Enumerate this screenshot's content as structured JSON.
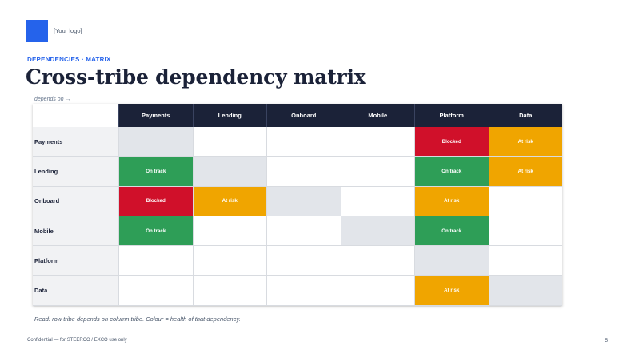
{
  "logo": {
    "text": "[Your logo]"
  },
  "kicker": "DEPENDENCIES · MATRIX",
  "title": "Cross-tribe dependency matrix",
  "depends_on": "depends on →",
  "colors": {
    "navy": "#1b2238",
    "blocked": "#d0102a",
    "at_risk": "#f0a500",
    "on_track": "#2e9e57",
    "self": "#e2e5ea",
    "accent": "#2563eb"
  },
  "matrix": {
    "columns": [
      "Payments",
      "Lending",
      "Onboard",
      "Mobile",
      "Platform",
      "Data"
    ],
    "rows": [
      {
        "label": "Payments",
        "cells": [
          "self",
          "",
          "",
          "",
          "Blocked",
          "At risk"
        ]
      },
      {
        "label": "Lending",
        "cells": [
          "On track",
          "self",
          "",
          "",
          "On track",
          "At risk"
        ]
      },
      {
        "label": "Onboard",
        "cells": [
          "Blocked",
          "At risk",
          "self",
          "",
          "At risk",
          ""
        ]
      },
      {
        "label": "Mobile",
        "cells": [
          "On track",
          "",
          "",
          "self",
          "On track",
          ""
        ]
      },
      {
        "label": "Platform",
        "cells": [
          "",
          "",
          "",
          "",
          "self",
          ""
        ]
      },
      {
        "label": "Data",
        "cells": [
          "",
          "",
          "",
          "",
          "At risk",
          "self"
        ]
      }
    ]
  },
  "footnote": "Read: row tribe depends on column tribe. Colour = health of that dependency.",
  "footer": "Confidential — for STEERCO / EXCO use only",
  "page_number": "5"
}
